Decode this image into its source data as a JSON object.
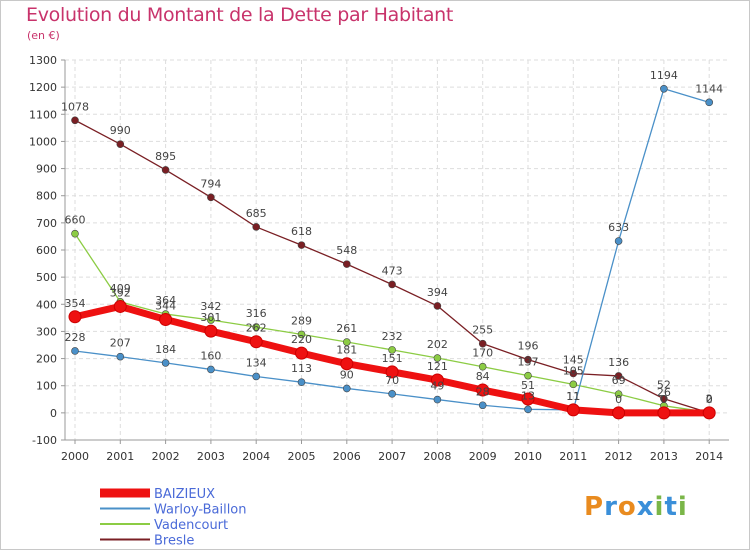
{
  "title": "Evolution du Montant de la Dette par Habitant",
  "subtitle": "(en €)",
  "logo": {
    "text": "Proxiti",
    "colors": [
      "#e98b1f",
      "#3a8fd9",
      "#e98b1f",
      "#3a8fd9",
      "#7ab648",
      "#3a8fd9",
      "#7ab648"
    ]
  },
  "chart_data": {
    "type": "line",
    "x": [
      2000,
      2001,
      2002,
      2003,
      2004,
      2005,
      2006,
      2007,
      2008,
      2009,
      2010,
      2011,
      2012,
      2013,
      2014
    ],
    "ylim": [
      -100,
      1300
    ],
    "yticks": [
      -100,
      0,
      100,
      200,
      300,
      400,
      500,
      600,
      700,
      800,
      900,
      1000,
      1100,
      1200,
      1300
    ],
    "grid": true,
    "legend_position": "bottom-left",
    "series": [
      {
        "name": "BAIZIEUX",
        "color": "#ee1111",
        "values": [
          354,
          392,
          344,
          301,
          262,
          220,
          181,
          151,
          121,
          84,
          51,
          11,
          0,
          0,
          0
        ],
        "labels": [
          "354",
          "392",
          "344",
          "301",
          "262",
          "220",
          "181",
          "151",
          "121",
          "84",
          "51",
          "11",
          "0",
          "0",
          "0"
        ]
      },
      {
        "name": "Warloy-Baillon",
        "color": "#4a90c8",
        "values": [
          228,
          207,
          184,
          160,
          134,
          113,
          90,
          70,
          49,
          28,
          13,
          11,
          633,
          1194,
          1144
        ],
        "labels": [
          "228",
          "207",
          "184",
          "160",
          "134",
          "113",
          "90",
          "70",
          "49",
          "28",
          "13",
          "11",
          "633",
          "1194",
          "1144"
        ]
      },
      {
        "name": "Vadencourt",
        "color": "#8ccc44",
        "values": [
          660,
          409,
          364,
          342,
          316,
          289,
          261,
          232,
          202,
          170,
          137,
          105,
          69,
          26,
          2
        ],
        "labels": [
          "660",
          "409",
          "364",
          "342",
          "316",
          "289",
          "261",
          "232",
          "202",
          "170",
          "137",
          "105",
          "69",
          "26",
          "2"
        ]
      },
      {
        "name": "Bresle",
        "color": "#7a1f24",
        "values": [
          1078,
          990,
          895,
          794,
          685,
          618,
          548,
          473,
          394,
          255,
          196,
          145,
          136,
          52,
          0
        ],
        "labels": [
          "1078",
          "990",
          "895",
          "794",
          "685",
          "618",
          "548",
          "473",
          "394",
          "255",
          "196",
          "145",
          "136",
          "52",
          "0"
        ]
      }
    ]
  }
}
